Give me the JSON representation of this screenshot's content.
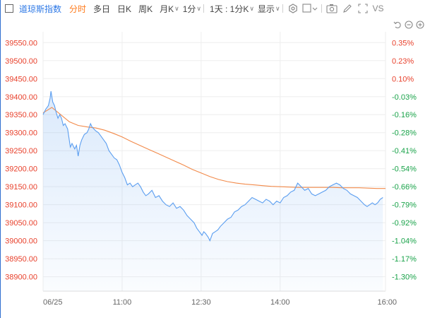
{
  "toolbar": {
    "index_name": "道琼斯指数",
    "tabs": [
      {
        "label": "分时",
        "active": true
      },
      {
        "label": "多日",
        "active": false
      },
      {
        "label": "日K",
        "active": false
      },
      {
        "label": "周K",
        "active": false
      },
      {
        "label": "月K",
        "active": false
      }
    ],
    "interval_label": "1分",
    "span_label": "1天 : 1分K",
    "display_label": "显示",
    "vs_label": "VS"
  },
  "colors": {
    "price_line": "#5b9ef0",
    "avg_line": "#f28a4a",
    "price_axis": "#e8412c",
    "pct_up": "#e8412c",
    "pct_down": "#1aa34a",
    "accent": "#2d78e6",
    "active_tab": "#ff7a1a"
  },
  "chart_data": {
    "type": "line",
    "ylim": [
      38860,
      39580
    ],
    "y_ticks": [
      39550.0,
      39500.0,
      39450.0,
      39400.0,
      39350.0,
      39300.0,
      39250.0,
      39200.0,
      39150.0,
      39100.0,
      39050.0,
      39000.0,
      38950.0,
      38900.0
    ],
    "pct_ticks": [
      "0.35%",
      "0.23%",
      "0.10%",
      "-0.03%",
      "-0.16%",
      "-0.28%",
      "-0.41%",
      "-0.54%",
      "-0.66%",
      "-0.79%",
      "-0.92%",
      "-1.04%",
      "-1.17%",
      "-1.30%"
    ],
    "x_ticks": [
      "06/25",
      "11:00",
      "12:30",
      "14:00",
      "16:00"
    ],
    "x_tick_minutes": [
      0,
      90,
      180,
      270,
      390
    ],
    "xlim": [
      0,
      390
    ],
    "series": [
      {
        "values": [
          [
            0,
            39350
          ],
          [
            3,
            39365
          ],
          [
            6,
            39375
          ],
          [
            8,
            39395
          ],
          [
            9,
            39415
          ],
          [
            11,
            39385
          ],
          [
            13,
            39375
          ],
          [
            15,
            39355
          ],
          [
            17,
            39340
          ],
          [
            19,
            39350
          ],
          [
            21,
            39340
          ],
          [
            23,
            39320
          ],
          [
            25,
            39325
          ],
          [
            28,
            39310
          ],
          [
            31,
            39260
          ],
          [
            33,
            39270
          ],
          [
            36,
            39255
          ],
          [
            38,
            39265
          ],
          [
            40,
            39235
          ],
          [
            42,
            39265
          ],
          [
            44,
            39280
          ],
          [
            47,
            39295
          ],
          [
            50,
            39300
          ],
          [
            52,
            39310
          ],
          [
            54,
            39325
          ],
          [
            56,
            39315
          ],
          [
            58,
            39310
          ],
          [
            60,
            39305
          ],
          [
            63,
            39300
          ],
          [
            66,
            39290
          ],
          [
            69,
            39280
          ],
          [
            72,
            39270
          ],
          [
            75,
            39250
          ],
          [
            78,
            39240
          ],
          [
            81,
            39230
          ],
          [
            84,
            39225
          ],
          [
            87,
            39210
          ],
          [
            90,
            39190
          ],
          [
            93,
            39175
          ],
          [
            96,
            39155
          ],
          [
            99,
            39160
          ],
          [
            102,
            39150
          ],
          [
            105,
            39155
          ],
          [
            108,
            39160
          ],
          [
            111,
            39150
          ],
          [
            114,
            39135
          ],
          [
            117,
            39125
          ],
          [
            120,
            39130
          ],
          [
            124,
            39140
          ],
          [
            128,
            39120
          ],
          [
            132,
            39125
          ],
          [
            136,
            39110
          ],
          [
            140,
            39100
          ],
          [
            144,
            39095
          ],
          [
            148,
            39105
          ],
          [
            152,
            39090
          ],
          [
            156,
            39095
          ],
          [
            160,
            39085
          ],
          [
            164,
            39070
          ],
          [
            168,
            39060
          ],
          [
            172,
            39050
          ],
          [
            175,
            39035
          ],
          [
            178,
            39025
          ],
          [
            181,
            39015
          ],
          [
            183,
            39025
          ],
          [
            185,
            39020
          ],
          [
            188,
            39010
          ],
          [
            190,
            39000
          ],
          [
            193,
            39020
          ],
          [
            196,
            39025
          ],
          [
            199,
            39030
          ],
          [
            202,
            39040
          ],
          [
            206,
            39050
          ],
          [
            210,
            39060
          ],
          [
            214,
            39065
          ],
          [
            218,
            39080
          ],
          [
            222,
            39085
          ],
          [
            226,
            39095
          ],
          [
            230,
            39100
          ],
          [
            234,
            39110
          ],
          [
            238,
            39120
          ],
          [
            242,
            39115
          ],
          [
            246,
            39110
          ],
          [
            250,
            39105
          ],
          [
            254,
            39115
          ],
          [
            258,
            39110
          ],
          [
            262,
            39100
          ],
          [
            266,
            39110
          ],
          [
            270,
            39105
          ],
          [
            274,
            39120
          ],
          [
            278,
            39125
          ],
          [
            282,
            39135
          ],
          [
            286,
            39140
          ],
          [
            290,
            39160
          ],
          [
            294,
            39150
          ],
          [
            298,
            39140
          ],
          [
            302,
            39145
          ],
          [
            306,
            39130
          ],
          [
            310,
            39125
          ],
          [
            314,
            39130
          ],
          [
            318,
            39135
          ],
          [
            322,
            39140
          ],
          [
            326,
            39150
          ],
          [
            330,
            39155
          ],
          [
            334,
            39160
          ],
          [
            338,
            39155
          ],
          [
            342,
            39145
          ],
          [
            346,
            39140
          ],
          [
            350,
            39130
          ],
          [
            354,
            39125
          ],
          [
            358,
            39120
          ],
          [
            362,
            39110
          ],
          [
            366,
            39100
          ],
          [
            369,
            39095
          ],
          [
            372,
            39100
          ],
          [
            375,
            39105
          ],
          [
            378,
            39100
          ],
          [
            381,
            39105
          ],
          [
            384,
            39115
          ],
          [
            387,
            39120
          ]
        ]
      },
      {
        "values": [
          [
            0,
            39355
          ],
          [
            10,
            39370
          ],
          [
            20,
            39350
          ],
          [
            30,
            39330
          ],
          [
            40,
            39320
          ],
          [
            50,
            39316
          ],
          [
            60,
            39313
          ],
          [
            70,
            39307
          ],
          [
            80,
            39298
          ],
          [
            90,
            39288
          ],
          [
            100,
            39276
          ],
          [
            110,
            39265
          ],
          [
            120,
            39254
          ],
          [
            130,
            39243
          ],
          [
            140,
            39232
          ],
          [
            150,
            39221
          ],
          [
            160,
            39210
          ],
          [
            170,
            39198
          ],
          [
            180,
            39188
          ],
          [
            190,
            39178
          ],
          [
            200,
            39170
          ],
          [
            210,
            39164
          ],
          [
            220,
            39160
          ],
          [
            230,
            39157
          ],
          [
            240,
            39155
          ],
          [
            250,
            39153
          ],
          [
            260,
            39151
          ],
          [
            270,
            39150
          ],
          [
            280,
            39149
          ],
          [
            290,
            39148
          ],
          [
            300,
            39148
          ],
          [
            310,
            39148
          ],
          [
            320,
            39148
          ],
          [
            330,
            39148
          ],
          [
            340,
            39147
          ],
          [
            350,
            39147
          ],
          [
            360,
            39147
          ],
          [
            370,
            39146
          ],
          [
            380,
            39145
          ],
          [
            390,
            39145
          ]
        ]
      }
    ],
    "grid": true
  }
}
